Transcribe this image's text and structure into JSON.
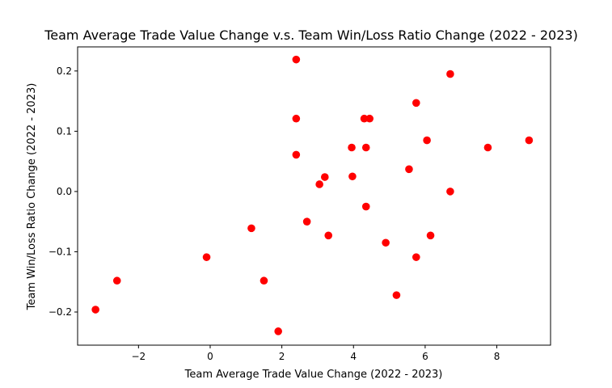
{
  "chart_data": {
    "type": "scatter",
    "title": "Team Average Trade Value Change v.s. Team Win/Loss Ratio Change (2022 - 2023)",
    "xlabel": "Team Average Trade Value Change (2022 - 2023)",
    "ylabel": "Team Win/Loss Ratio Change (2022 - 2023)",
    "xlim": [
      -3.7,
      9.5
    ],
    "ylim": [
      -0.255,
      0.24
    ],
    "x_ticks": [
      -2,
      0,
      2,
      4,
      6,
      8
    ],
    "x_tick_labels": [
      "−2",
      "0",
      "2",
      "4",
      "6",
      "8"
    ],
    "y_ticks": [
      -0.2,
      -0.1,
      0.0,
      0.1,
      0.2
    ],
    "y_tick_labels": [
      "−0.2",
      "−0.1",
      "0.0",
      "0.1",
      "0.2"
    ],
    "grid": false,
    "marker_color": "#ff0000",
    "points": [
      {
        "x": -3.2,
        "y": -0.196
      },
      {
        "x": -2.6,
        "y": -0.148
      },
      {
        "x": -0.1,
        "y": -0.109
      },
      {
        "x": 1.15,
        "y": -0.061
      },
      {
        "x": 1.5,
        "y": -0.148
      },
      {
        "x": 1.9,
        "y": -0.232
      },
      {
        "x": 2.4,
        "y": 0.219
      },
      {
        "x": 2.4,
        "y": 0.121
      },
      {
        "x": 2.4,
        "y": 0.061
      },
      {
        "x": 2.7,
        "y": -0.05
      },
      {
        "x": 3.05,
        "y": 0.012
      },
      {
        "x": 3.2,
        "y": 0.024
      },
      {
        "x": 3.3,
        "y": -0.073
      },
      {
        "x": 3.95,
        "y": 0.073
      },
      {
        "x": 3.97,
        "y": 0.025
      },
      {
        "x": 4.3,
        "y": 0.121
      },
      {
        "x": 4.45,
        "y": 0.121
      },
      {
        "x": 4.35,
        "y": 0.073
      },
      {
        "x": 4.35,
        "y": -0.025
      },
      {
        "x": 4.9,
        "y": -0.085
      },
      {
        "x": 5.2,
        "y": -0.172
      },
      {
        "x": 5.55,
        "y": 0.037
      },
      {
        "x": 5.75,
        "y": 0.147
      },
      {
        "x": 5.75,
        "y": -0.109
      },
      {
        "x": 6.05,
        "y": 0.085
      },
      {
        "x": 6.15,
        "y": -0.073
      },
      {
        "x": 6.7,
        "y": 0.195
      },
      {
        "x": 6.7,
        "y": 0.0
      },
      {
        "x": 7.75,
        "y": 0.073
      },
      {
        "x": 8.9,
        "y": 0.085
      }
    ]
  }
}
